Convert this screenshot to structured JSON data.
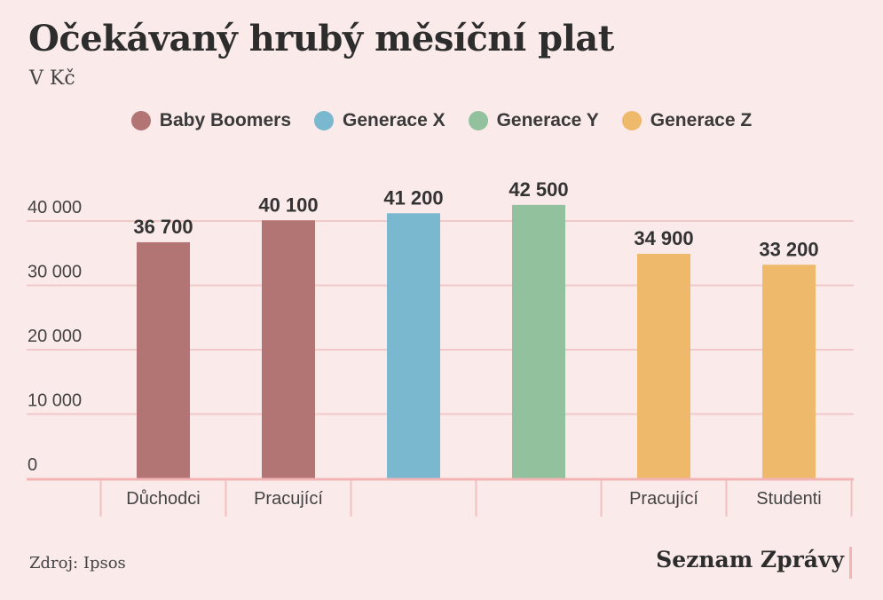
{
  "header": {
    "title": "Očekávaný hrubý měsíční plat",
    "subtitle": "V Kč"
  },
  "legend": [
    {
      "label": "Baby Boomers",
      "color": "#b37474"
    },
    {
      "label": "Generace X",
      "color": "#79b8cf"
    },
    {
      "label": "Generace Y",
      "color": "#92c19e"
    },
    {
      "label": "Generace Z",
      "color": "#efb96c"
    }
  ],
  "footer": {
    "source": "Zdroj: Ipsos",
    "brand": "Seznam Zprávy"
  },
  "chart_data": {
    "type": "bar",
    "title": "Očekávaný hrubý měsíční plat",
    "ylabel": "",
    "xlabel": "",
    "ylim": [
      0,
      42500
    ],
    "grid": true,
    "legend_position": "top-center",
    "yticks": [
      0,
      10000,
      20000,
      30000,
      40000
    ],
    "ytick_labels": [
      "0",
      "10 000",
      "20 000",
      "30 000",
      "40 000"
    ],
    "categories": [
      "Důchodci",
      "Pracující",
      "",
      "",
      "Pracující",
      "Studenti"
    ],
    "values": [
      36700,
      40100,
      41200,
      42500,
      34900,
      33200
    ],
    "value_labels": [
      "36 700",
      "40 100",
      "41 200",
      "42 500",
      "34 900",
      "33 200"
    ],
    "bar_series": [
      "Baby Boomers",
      "Baby Boomers",
      "Generace X",
      "Generace Y",
      "Generace Z",
      "Generace Z"
    ],
    "colors": [
      "#b37474",
      "#b37474",
      "#79b8cf",
      "#92c19e",
      "#efb96c",
      "#efb96c"
    ]
  }
}
